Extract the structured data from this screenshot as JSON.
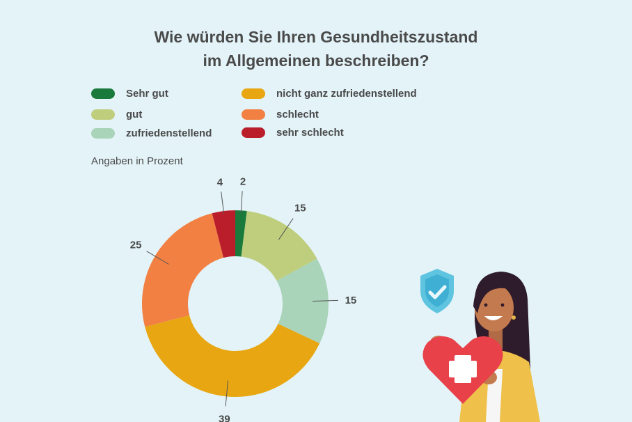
{
  "chart_data": {
    "type": "pie",
    "variant": "donut",
    "title_lines": [
      "Wie würden Sie Ihren Gesundheitszustand",
      "im Allgemeinen beschreiben?"
    ],
    "unit_note": "Angaben in Prozent",
    "legend_placement": "top",
    "categories": [
      "Sehr gut",
      "gut",
      "zufriedenstellend",
      "nicht ganz zufriedenstellend",
      "schlecht",
      "sehr schlecht"
    ],
    "values": [
      2,
      15,
      15,
      39,
      25,
      4
    ],
    "colors": [
      "#1a7a3c",
      "#bfce7c",
      "#a9d4b9",
      "#e8a712",
      "#f28043",
      "#bb1e2b"
    ]
  },
  "colors": {
    "background": "#e3f3f8",
    "text": "#4a4a4a"
  },
  "illustration": {
    "icons": [
      "shield-check-icon",
      "heart-cross-icon",
      "woman-holding-heart"
    ]
  }
}
